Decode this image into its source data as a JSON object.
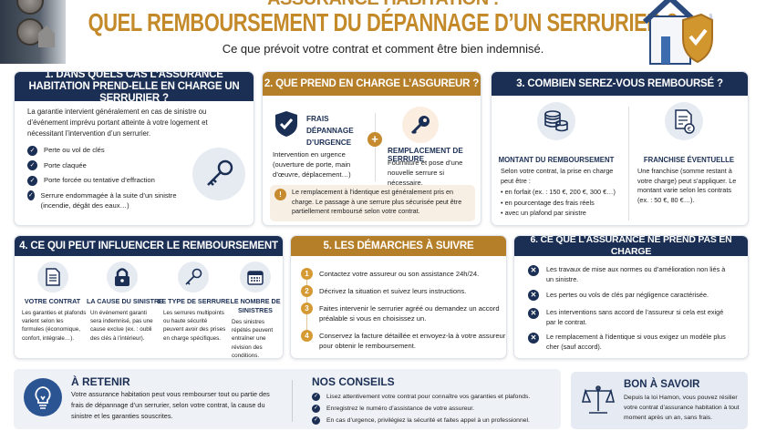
{
  "header": {
    "top_title": "ASSURANCE HABITATION :",
    "title": "QUEL REMBOURSEMENT DU DÉPANNAGE D’UN SERRURIER ?",
    "subtitle": "Ce que prévoit votre contrat et comment être bien indemnisé."
  },
  "colors": {
    "navy": "#1b2f55",
    "gold": "#b57f2a",
    "title_gold": "#c48a2a"
  },
  "s1": {
    "title": "1. DANS QUELS CAS L’ASSURANCE HABITATION PREND-ELLE EN CHARGE UN SERRURIER ?",
    "intro": "La garantie intervient généralement en cas de sinistre ou d’événement imprévu portant atteinte à votre logement et nécessitant l’intervention d’un serrurier.",
    "items": [
      "Perte ou vol de clés",
      "Porte claquée",
      "Porte forcée ou tentative d’effraction",
      "Serrure endommagée à la suite d’un sinistre (incendie, dégât des eaux…)"
    ],
    "icon": "key-icon"
  },
  "s2": {
    "title": "2. QUE PREND EN CHARGE L’ASGUREUR ?",
    "left_title": "FRAIS DÉPANNAGE D’URGENCE",
    "left_text": "Intervention en urgence (ouverture de porte, main d’œuvre, déplacement…)",
    "plus": "+",
    "right_title": "REMPLACEMENT DE SERRURE",
    "right_text": "Fourniture et pose d’une nouvelle serrure si nécessaire.",
    "note_icon": "!",
    "note": "Le remplacement à l’identique est généralement pris en charge. Le passage à une serrure plus sécurisée peut être partiellement remboursé selon votre contrat."
  },
  "s3": {
    "title": "3. COMBIEN SEREZ-VOUS REMBOURSÉ ?",
    "left_title": "MONTANT DU REMBOURSEMENT",
    "left_intro": "Selon votre contrat, la prise en charge peut être :",
    "left_items": [
      "en forfait (ex. : 150 €, 200 €, 300 €…)",
      "en pourcentage des frais réels",
      "avec un plafond par sinistre"
    ],
    "right_title": "FRANCHISE ÉVENTUELLE",
    "right_text": "Une franchise (somme restant à votre charge) peut s’appliquer. Le montant varie selon les contrats (ex. : 50 €, 80 €…).",
    "euro": "€"
  },
  "s4": {
    "title": "4. CE QUI PEUT INFLUENCER LE REMBOURSEMENT",
    "cols": [
      {
        "title": "VOTRE CONTRAT",
        "text": "Les garanties et plafonds varient selon les formules (économique, confort, intégrale…).",
        "icon": "document-icon"
      },
      {
        "title": "LA CAUSE DU SINISTRE",
        "text": "Un événement garanti sera indemnisé, pas une cause exclue (ex. : oubli des clés à l’intérieur).",
        "icon": "padlock-icon"
      },
      {
        "title": "LE TYPE DE SERRURE",
        "text": "Les serrures multipoints ou haute sécurité peuvent avoir des prises en charge spécifiques.",
        "icon": "key-icon"
      },
      {
        "title": "LE NOMBRE DE SINISTRES",
        "text": "Des sinistres répétés peuvent entraîner une révision des conditions.",
        "icon": "calendar-icon"
      }
    ]
  },
  "s5": {
    "title": "5. LES DÉMARCHES À SUIVRE",
    "steps": [
      {
        "n": "1",
        "text": "Contactez votre assureur ou son assistance 24h/24."
      },
      {
        "n": "2",
        "text": "Décrivez la situation et suivez leurs instructions."
      },
      {
        "n": "3",
        "text": "Faites intervenir le serrurier agréé ou demandez un accord préalable si vous en choisissez un."
      },
      {
        "n": "4",
        "text": "Conservez la facture détaillée et envoyez-la à votre assureur pour obtenir le remboursement."
      }
    ]
  },
  "s6": {
    "title": "6. CE QUE L’ASSURANCE NE PREND PAS EN CHARGE",
    "items": [
      "Les travaux de mise aux normes ou d’amélioration non liés à un sinistre.",
      "Les pertes ou vols de clés par négligence caractérisée.",
      "Les interventions sans accord de l’assureur si cela est exigé par le contrat.",
      "Le remplacement à l’identique si vous exigez un modèle plus cher (sauf accord)."
    ]
  },
  "retenir": {
    "title": "À RETENIR",
    "text": "Votre assurance habitation peut vous rembourser tout ou partie des frais de dépannage d’un serrurier, selon votre contrat, la cause du sinistre et les garanties souscrites.",
    "icon": "lightbulb-icon"
  },
  "conseils": {
    "title": "NOS CONSEILS",
    "items": [
      "Lisez attentivement votre contrat pour connaître vos garanties et plafonds.",
      "Enregistrez le numéro d’assistance de votre assureur.",
      "En cas d’urgence, privilégiez la sécurité et faites appel à un professionnel."
    ]
  },
  "savoir": {
    "title": "BON À SAVOIR",
    "text": "Depuis la loi Hamon, vous pouvez résilier votre contrat d’assurance habitation à tout moment après un an, sans frais.",
    "icon": "scales-icon"
  }
}
